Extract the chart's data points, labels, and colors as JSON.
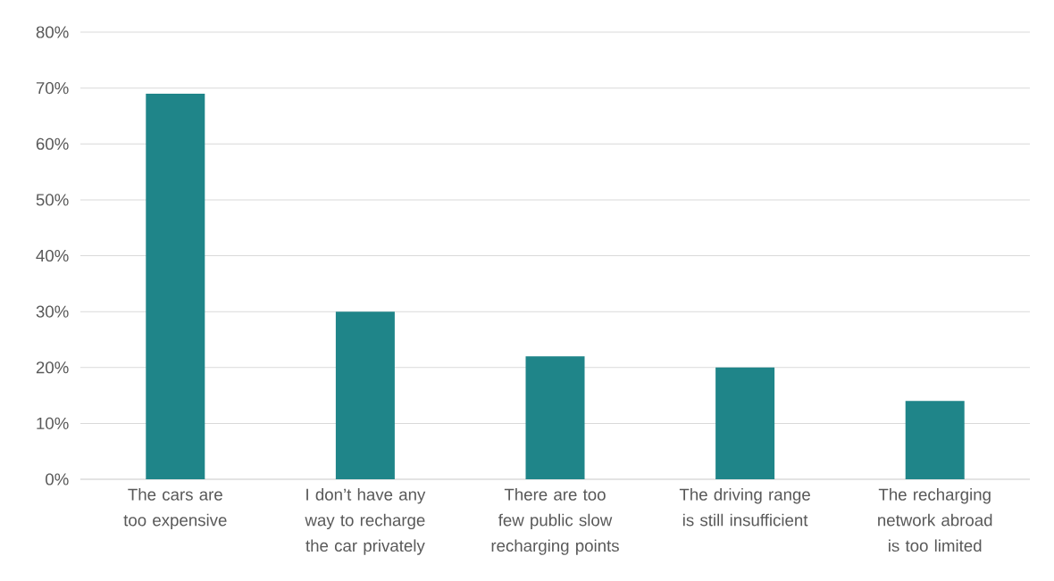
{
  "chart_data": {
    "type": "bar",
    "categories": [
      "The cars are too expensive",
      "I don’t have any way to recharge the car privately",
      "There are too few public slow recharging points",
      "The driving range is still insufficient",
      "The recharging network abroad is too limited"
    ],
    "values": [
      69,
      30,
      22,
      20,
      14
    ],
    "color": "#1f8589",
    "ylim": [
      0,
      80
    ],
    "yticks": [
      {
        "value": 0,
        "label": "0%"
      },
      {
        "value": 10,
        "label": "10%"
      },
      {
        "value": 20,
        "label": "20%"
      },
      {
        "value": 30,
        "label": "30%"
      },
      {
        "value": 40,
        "label": "40%"
      },
      {
        "value": 50,
        "label": "50%"
      },
      {
        "value": 60,
        "label": "60%"
      },
      {
        "value": 70,
        "label": "70%"
      },
      {
        "value": 80,
        "label": "80%"
      }
    ],
    "grid": "y"
  }
}
